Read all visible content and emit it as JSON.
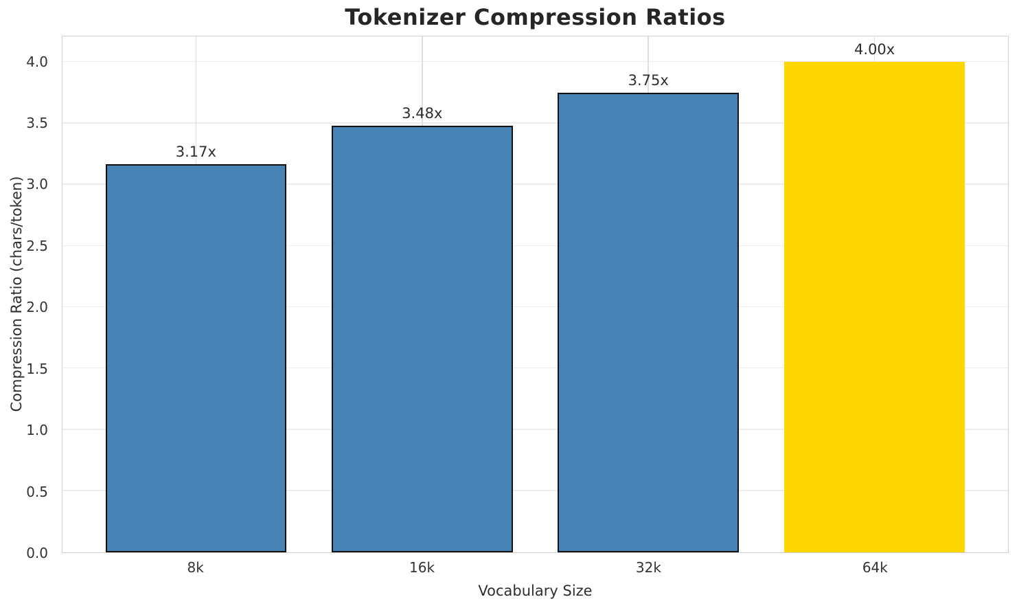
{
  "chart_data": {
    "type": "bar",
    "title": "Tokenizer Compression Ratios",
    "xlabel": "Vocabulary Size",
    "ylabel": "Compression Ratio (chars/token)",
    "categories": [
      "8k",
      "16k",
      "32k",
      "64k"
    ],
    "values": [
      3.17,
      3.48,
      3.75,
      4.0
    ],
    "bar_labels": [
      "3.17x",
      "3.48x",
      "3.75x",
      "4.00x"
    ],
    "bar_colors": [
      "#4682B4",
      "#4682B4",
      "#4682B4",
      "#FFD700"
    ],
    "bar_edge_colors": [
      "#111111",
      "#111111",
      "#111111",
      "none"
    ],
    "accent_color": "#FFD700",
    "base_color": "#4682B4",
    "ytick_labels": [
      "0.0",
      "0.5",
      "1.0",
      "1.5",
      "2.0",
      "2.5",
      "3.0",
      "3.5",
      "4.0"
    ],
    "yticks": [
      0.0,
      0.5,
      1.0,
      1.5,
      2.0,
      2.5,
      3.0,
      3.5,
      4.0
    ],
    "ylim": [
      0,
      4.21
    ],
    "grid": true,
    "legend_position": "none"
  }
}
